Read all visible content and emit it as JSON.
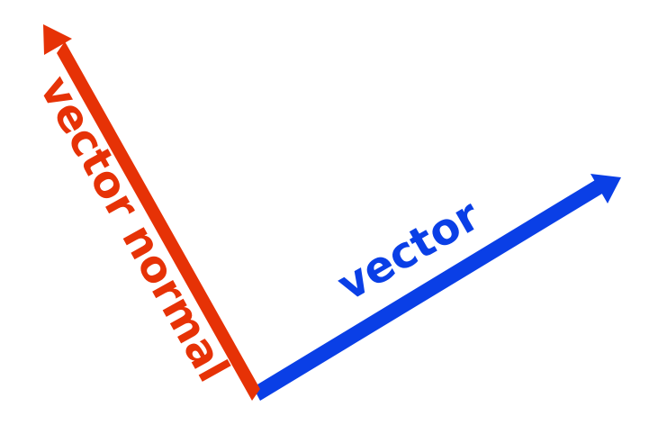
{
  "diagram": {
    "vector": {
      "label": "vector",
      "color": "#0a3fe6"
    },
    "normal": {
      "label": "vector normal",
      "color": "#e63206"
    }
  }
}
